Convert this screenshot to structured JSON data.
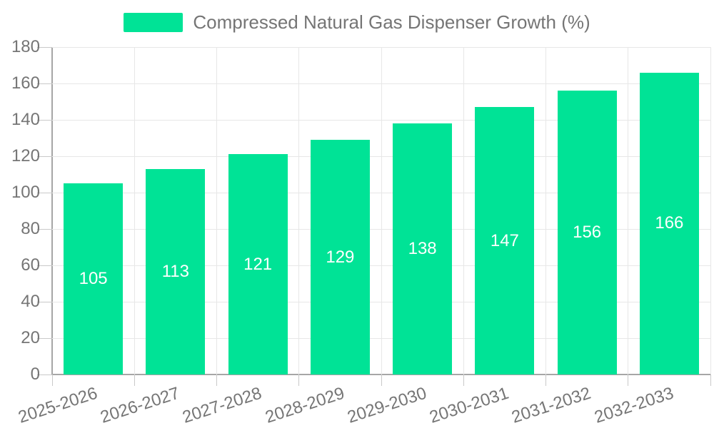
{
  "legend": {
    "swatch_color": "#00E396"
  },
  "colors": {
    "bar": "#00E396",
    "axis_text": "#757575",
    "value_label": "#ffffff",
    "gridline": "#e7e7e7",
    "axis_line": "#a6a6a6",
    "tick": "#c9c9c9",
    "background": "#ffffff"
  },
  "chart_data": {
    "type": "bar",
    "title": "Compressed Natural Gas Dispenser Growth (%)",
    "series_name": "Compressed Natural Gas Dispenser Growth (%)",
    "categories": [
      "2025-2026",
      "2026-2027",
      "2027-2028",
      "2028-2029",
      "2029-2030",
      "2030-2031",
      "2031-2032",
      "2032-2033"
    ],
    "values": [
      105,
      113,
      121,
      129,
      138,
      147,
      156,
      166
    ],
    "xlabel": "",
    "ylabel": "",
    "ylim": [
      0,
      180
    ],
    "y_tick_step": 20,
    "y_ticks": [
      0,
      20,
      40,
      60,
      80,
      100,
      120,
      140,
      160,
      180
    ],
    "grid": true,
    "legend_position": "top",
    "bar_labels_visible": true,
    "bar_label_position": "middle"
  }
}
